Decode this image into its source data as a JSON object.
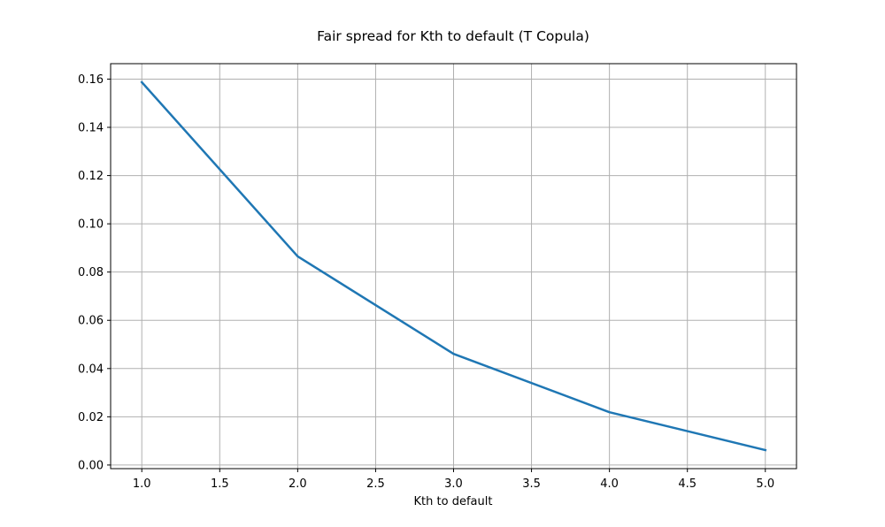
{
  "chart_data": {
    "type": "line",
    "title": "Fair spread for Kth to default (T Copula)",
    "xlabel": "Kth to default",
    "ylabel": "",
    "xlim": [
      0.8,
      5.2
    ],
    "ylim": [
      -0.0015,
      0.1664
    ],
    "xticks": [
      1.0,
      1.5,
      2.0,
      2.5,
      3.0,
      3.5,
      4.0,
      4.5,
      5.0
    ],
    "xtick_labels": [
      "1.0",
      "1.5",
      "2.0",
      "2.5",
      "3.0",
      "3.5",
      "4.0",
      "4.5",
      "5.0"
    ],
    "yticks": [
      0.0,
      0.02,
      0.04,
      0.06,
      0.08,
      0.1,
      0.12,
      0.14,
      0.16
    ],
    "ytick_labels": [
      "0.00",
      "0.02",
      "0.04",
      "0.06",
      "0.08",
      "0.10",
      "0.12",
      "0.14",
      "0.16"
    ],
    "grid": true,
    "series": [
      {
        "x": [
          1,
          2,
          3,
          4,
          5
        ],
        "y": [
          0.1587,
          0.0865,
          0.0461,
          0.0219,
          0.0062
        ],
        "color": "#1f77b4"
      }
    ]
  }
}
